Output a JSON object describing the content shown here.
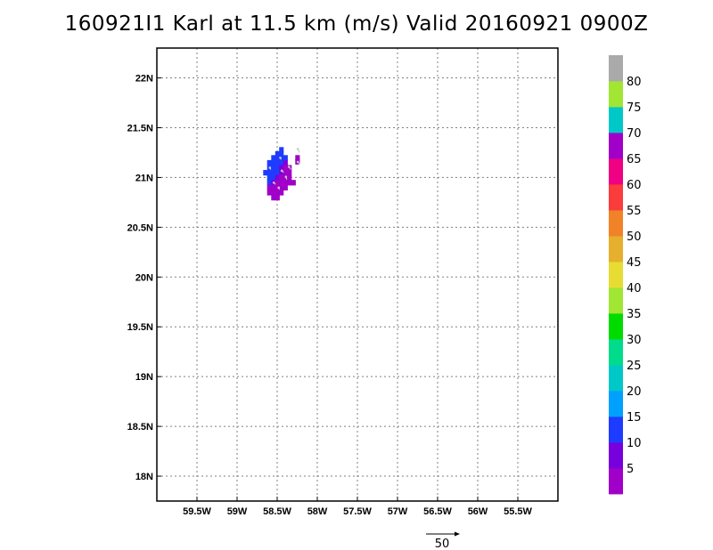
{
  "title": "160921I1 Karl at 11.5 km (m/s) Valid 20160921 0900Z",
  "map": {
    "lon_range": [
      -60.0,
      -55.0
    ],
    "lat_range": [
      17.75,
      22.3
    ],
    "grid": true,
    "x_ticks": [
      {
        "value": -59.5,
        "label": "59.5W"
      },
      {
        "value": -59.0,
        "label": "59W"
      },
      {
        "value": -58.5,
        "label": "58.5W"
      },
      {
        "value": -58.0,
        "label": "58W"
      },
      {
        "value": -57.5,
        "label": "57.5W"
      },
      {
        "value": -57.0,
        "label": "57W"
      },
      {
        "value": -56.5,
        "label": "56.5W"
      },
      {
        "value": -56.0,
        "label": "56W"
      },
      {
        "value": -55.5,
        "label": "55.5W"
      }
    ],
    "y_ticks": [
      {
        "value": 22.0,
        "label": "22N"
      },
      {
        "value": 21.5,
        "label": "21.5N"
      },
      {
        "value": 21.0,
        "label": "21N"
      },
      {
        "value": 20.5,
        "label": "20.5N"
      },
      {
        "value": 20.0,
        "label": "20N"
      },
      {
        "value": 19.5,
        "label": "19.5N"
      },
      {
        "value": 19.0,
        "label": "19N"
      },
      {
        "value": 18.5,
        "label": "18.5N"
      },
      {
        "value": 18.0,
        "label": "18N"
      }
    ]
  },
  "colorbar": {
    "labels": [
      "5",
      "10",
      "15",
      "20",
      "25",
      "30",
      "35",
      "40",
      "45",
      "50",
      "55",
      "60",
      "65",
      "70",
      "75",
      "80"
    ],
    "colors": [
      "#a000c8",
      "#7800dc",
      "#1e3cff",
      "#00a0ff",
      "#00c8c8",
      "#00dc8c",
      "#00dc00",
      "#a0e632",
      "#e6dc32",
      "#e6af2d",
      "#f08228",
      "#fa3c3c",
      "#f00082",
      "#a000c8",
      "#00c8c8",
      "#a0e632",
      "#aaaaaa"
    ]
  },
  "reference_vector": {
    "label": "50"
  },
  "wind_cells": [
    {
      "lon": -58.45,
      "lat": 21.28,
      "color": "#1e3cff"
    },
    {
      "lon": -58.5,
      "lat": 21.24,
      "color": "#1e3cff"
    },
    {
      "lon": -58.45,
      "lat": 21.24,
      "color": "#1e3cff"
    },
    {
      "lon": -58.55,
      "lat": 21.2,
      "color": "#1e3cff"
    },
    {
      "lon": -58.5,
      "lat": 21.2,
      "color": "#1e3cff"
    },
    {
      "lon": -58.45,
      "lat": 21.2,
      "color": "#1e3cff"
    },
    {
      "lon": -58.4,
      "lat": 21.2,
      "color": "#1e3cff"
    },
    {
      "lon": -58.6,
      "lat": 21.15,
      "color": "#1e3cff"
    },
    {
      "lon": -58.55,
      "lat": 21.15,
      "color": "#1e3cff"
    },
    {
      "lon": -58.5,
      "lat": 21.15,
      "color": "#1e3cff"
    },
    {
      "lon": -58.45,
      "lat": 21.15,
      "color": "#1e3cff"
    },
    {
      "lon": -58.4,
      "lat": 21.15,
      "color": "#7800dc"
    },
    {
      "lon": -58.6,
      "lat": 21.1,
      "color": "#1e3cff"
    },
    {
      "lon": -58.55,
      "lat": 21.1,
      "color": "#1e3cff"
    },
    {
      "lon": -58.5,
      "lat": 21.1,
      "color": "#1e3cff"
    },
    {
      "lon": -58.45,
      "lat": 21.1,
      "color": "#7800dc"
    },
    {
      "lon": -58.4,
      "lat": 21.1,
      "color": "#a000c8"
    },
    {
      "lon": -58.35,
      "lat": 21.1,
      "color": "#a000c8"
    },
    {
      "lon": -58.65,
      "lat": 21.05,
      "color": "#1e3cff"
    },
    {
      "lon": -58.6,
      "lat": 21.05,
      "color": "#1e3cff"
    },
    {
      "lon": -58.55,
      "lat": 21.05,
      "color": "#1e3cff"
    },
    {
      "lon": -58.5,
      "lat": 21.05,
      "color": "#1e3cff"
    },
    {
      "lon": -58.45,
      "lat": 21.05,
      "color": "#7800dc"
    },
    {
      "lon": -58.4,
      "lat": 21.05,
      "color": "#a000c8"
    },
    {
      "lon": -58.35,
      "lat": 21.05,
      "color": "#a000c8"
    },
    {
      "lon": -58.6,
      "lat": 21.0,
      "color": "#1e3cff"
    },
    {
      "lon": -58.55,
      "lat": 21.0,
      "color": "#1e3cff"
    },
    {
      "lon": -58.5,
      "lat": 21.0,
      "color": "#7800dc"
    },
    {
      "lon": -58.45,
      "lat": 21.0,
      "color": "#a000c8"
    },
    {
      "lon": -58.4,
      "lat": 21.0,
      "color": "#a000c8"
    },
    {
      "lon": -58.35,
      "lat": 21.0,
      "color": "#a000c8"
    },
    {
      "lon": -58.6,
      "lat": 20.95,
      "color": "#1e3cff"
    },
    {
      "lon": -58.55,
      "lat": 20.95,
      "color": "#7800dc"
    },
    {
      "lon": -58.5,
      "lat": 20.95,
      "color": "#a000c8"
    },
    {
      "lon": -58.45,
      "lat": 20.95,
      "color": "#a000c8"
    },
    {
      "lon": -58.4,
      "lat": 20.95,
      "color": "#a000c8"
    },
    {
      "lon": -58.35,
      "lat": 20.95,
      "color": "#a000c8"
    },
    {
      "lon": -58.3,
      "lat": 20.95,
      "color": "#a000c8"
    },
    {
      "lon": -58.6,
      "lat": 20.9,
      "color": "#a000c8"
    },
    {
      "lon": -58.55,
      "lat": 20.9,
      "color": "#a000c8"
    },
    {
      "lon": -58.5,
      "lat": 20.9,
      "color": "#a000c8"
    },
    {
      "lon": -58.45,
      "lat": 20.9,
      "color": "#a000c8"
    },
    {
      "lon": -58.4,
      "lat": 20.9,
      "color": "#a000c8"
    },
    {
      "lon": -58.6,
      "lat": 20.85,
      "color": "#a000c8"
    },
    {
      "lon": -58.55,
      "lat": 20.85,
      "color": "#a000c8"
    },
    {
      "lon": -58.5,
      "lat": 20.85,
      "color": "#a000c8"
    },
    {
      "lon": -58.45,
      "lat": 20.85,
      "color": "#a000c8"
    },
    {
      "lon": -58.55,
      "lat": 20.8,
      "color": "#a000c8"
    },
    {
      "lon": -58.5,
      "lat": 20.8,
      "color": "#a000c8"
    },
    {
      "lon": -58.25,
      "lat": 21.2,
      "color": "#a000c8"
    },
    {
      "lon": -58.25,
      "lat": 21.16,
      "color": "#a000c8"
    }
  ],
  "wind_vectors": [
    {
      "lon": -58.22,
      "lat": 21.25,
      "u": -2,
      "v": 4
    },
    {
      "lon": -58.22,
      "lat": 21.13,
      "u": -2,
      "v": 3
    },
    {
      "lon": -58.45,
      "lat": 21.18,
      "u": -1,
      "v": 2
    },
    {
      "lon": -58.42,
      "lat": 21.05,
      "u": -2,
      "v": 2
    },
    {
      "lon": -58.38,
      "lat": 20.98,
      "u": -1,
      "v": 3
    },
    {
      "lon": -58.52,
      "lat": 20.93,
      "u": -2,
      "v": 2
    },
    {
      "lon": -58.47,
      "lat": 20.88,
      "u": -1,
      "v": 2
    },
    {
      "lon": -58.33,
      "lat": 21.08,
      "u": -2,
      "v": 3
    },
    {
      "lon": -58.58,
      "lat": 21.08,
      "u": -1,
      "v": 2
    }
  ]
}
